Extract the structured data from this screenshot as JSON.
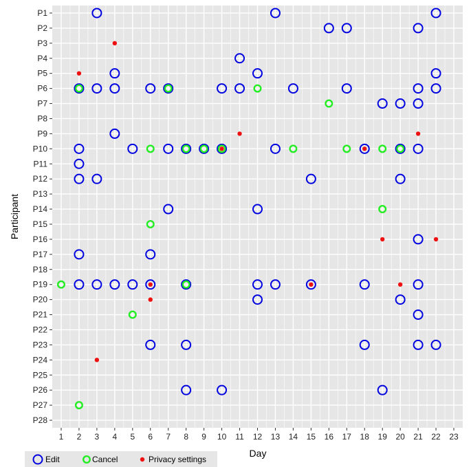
{
  "chart_data": {
    "type": "scatter",
    "title": "",
    "xlabel": "Day",
    "ylabel": "Participant",
    "x_ticks": [
      "1",
      "2",
      "3",
      "4",
      "5",
      "6",
      "7",
      "8",
      "9",
      "10",
      "11",
      "12",
      "13",
      "14",
      "15",
      "16",
      "17",
      "18",
      "19",
      "20",
      "21",
      "22",
      "23"
    ],
    "xlim": [
      0.5,
      23.5
    ],
    "y_categories": [
      "P1",
      "P2",
      "P3",
      "P4",
      "P5",
      "P6",
      "P7",
      "P8",
      "P9",
      "P10",
      "P11",
      "P12",
      "P13",
      "P14",
      "P15",
      "P16",
      "P17",
      "P18",
      "P19",
      "P20",
      "P21",
      "P22",
      "P23",
      "P24",
      "P25",
      "P26",
      "P27",
      "P28"
    ],
    "grid": true,
    "legend_position": "bottom-left",
    "colors": {
      "panel": "#e6e6e6",
      "grid": "#ffffff",
      "edit": "#0000e0",
      "cancel": "#22ee22",
      "privacy": "#ee1111"
    },
    "series": [
      {
        "name": "Edit",
        "marker": "open-circle-large",
        "points": [
          {
            "x": 3,
            "y": "P1"
          },
          {
            "x": 13,
            "y": "P1"
          },
          {
            "x": 22,
            "y": "P1"
          },
          {
            "x": 16,
            "y": "P2"
          },
          {
            "x": 17,
            "y": "P2"
          },
          {
            "x": 21,
            "y": "P2"
          },
          {
            "x": 11,
            "y": "P4"
          },
          {
            "x": 4,
            "y": "P5"
          },
          {
            "x": 12,
            "y": "P5"
          },
          {
            "x": 22,
            "y": "P5"
          },
          {
            "x": 2,
            "y": "P6"
          },
          {
            "x": 3,
            "y": "P6"
          },
          {
            "x": 4,
            "y": "P6"
          },
          {
            "x": 6,
            "y": "P6"
          },
          {
            "x": 7,
            "y": "P6"
          },
          {
            "x": 10,
            "y": "P6"
          },
          {
            "x": 11,
            "y": "P6"
          },
          {
            "x": 14,
            "y": "P6"
          },
          {
            "x": 17,
            "y": "P6"
          },
          {
            "x": 21,
            "y": "P6"
          },
          {
            "x": 22,
            "y": "P6"
          },
          {
            "x": 19,
            "y": "P7"
          },
          {
            "x": 20,
            "y": "P7"
          },
          {
            "x": 21,
            "y": "P7"
          },
          {
            "x": 4,
            "y": "P9"
          },
          {
            "x": 2,
            "y": "P10"
          },
          {
            "x": 5,
            "y": "P10"
          },
          {
            "x": 7,
            "y": "P10"
          },
          {
            "x": 8,
            "y": "P10"
          },
          {
            "x": 9,
            "y": "P10"
          },
          {
            "x": 10,
            "y": "P10"
          },
          {
            "x": 13,
            "y": "P10"
          },
          {
            "x": 18,
            "y": "P10"
          },
          {
            "x": 20,
            "y": "P10"
          },
          {
            "x": 21,
            "y": "P10"
          },
          {
            "x": 2,
            "y": "P11"
          },
          {
            "x": 2,
            "y": "P12"
          },
          {
            "x": 3,
            "y": "P12"
          },
          {
            "x": 15,
            "y": "P12"
          },
          {
            "x": 20,
            "y": "P12"
          },
          {
            "x": 7,
            "y": "P14"
          },
          {
            "x": 12,
            "y": "P14"
          },
          {
            "x": 21,
            "y": "P16"
          },
          {
            "x": 2,
            "y": "P17"
          },
          {
            "x": 6,
            "y": "P17"
          },
          {
            "x": 2,
            "y": "P19"
          },
          {
            "x": 3,
            "y": "P19"
          },
          {
            "x": 4,
            "y": "P19"
          },
          {
            "x": 5,
            "y": "P19"
          },
          {
            "x": 6,
            "y": "P19"
          },
          {
            "x": 8,
            "y": "P19"
          },
          {
            "x": 12,
            "y": "P19"
          },
          {
            "x": 13,
            "y": "P19"
          },
          {
            "x": 15,
            "y": "P19"
          },
          {
            "x": 18,
            "y": "P19"
          },
          {
            "x": 21,
            "y": "P19"
          },
          {
            "x": 12,
            "y": "P20"
          },
          {
            "x": 20,
            "y": "P20"
          },
          {
            "x": 21,
            "y": "P21"
          },
          {
            "x": 6,
            "y": "P23"
          },
          {
            "x": 8,
            "y": "P23"
          },
          {
            "x": 18,
            "y": "P23"
          },
          {
            "x": 21,
            "y": "P23"
          },
          {
            "x": 22,
            "y": "P23"
          },
          {
            "x": 8,
            "y": "P26"
          },
          {
            "x": 10,
            "y": "P26"
          },
          {
            "x": 19,
            "y": "P26"
          }
        ]
      },
      {
        "name": "Cancel",
        "marker": "open-circle-small",
        "points": [
          {
            "x": 2,
            "y": "P6"
          },
          {
            "x": 7,
            "y": "P6"
          },
          {
            "x": 12,
            "y": "P6"
          },
          {
            "x": 16,
            "y": "P7"
          },
          {
            "x": 6,
            "y": "P10"
          },
          {
            "x": 8,
            "y": "P10"
          },
          {
            "x": 9,
            "y": "P10"
          },
          {
            "x": 10,
            "y": "P10"
          },
          {
            "x": 14,
            "y": "P10"
          },
          {
            "x": 17,
            "y": "P10"
          },
          {
            "x": 19,
            "y": "P10"
          },
          {
            "x": 20,
            "y": "P10"
          },
          {
            "x": 19,
            "y": "P14"
          },
          {
            "x": 6,
            "y": "P15"
          },
          {
            "x": 1,
            "y": "P19"
          },
          {
            "x": 8,
            "y": "P19"
          },
          {
            "x": 5,
            "y": "P21"
          },
          {
            "x": 2,
            "y": "P27"
          }
        ]
      },
      {
        "name": "Privacy settings",
        "marker": "filled-dot",
        "points": [
          {
            "x": 4,
            "y": "P3"
          },
          {
            "x": 2,
            "y": "P5"
          },
          {
            "x": 11,
            "y": "P9"
          },
          {
            "x": 21,
            "y": "P9"
          },
          {
            "x": 10,
            "y": "P10"
          },
          {
            "x": 18,
            "y": "P10"
          },
          {
            "x": 19,
            "y": "P16"
          },
          {
            "x": 22,
            "y": "P16"
          },
          {
            "x": 6,
            "y": "P19"
          },
          {
            "x": 15,
            "y": "P19"
          },
          {
            "x": 20,
            "y": "P19"
          },
          {
            "x": 6,
            "y": "P20"
          },
          {
            "x": 3,
            "y": "P24"
          }
        ]
      }
    ]
  }
}
